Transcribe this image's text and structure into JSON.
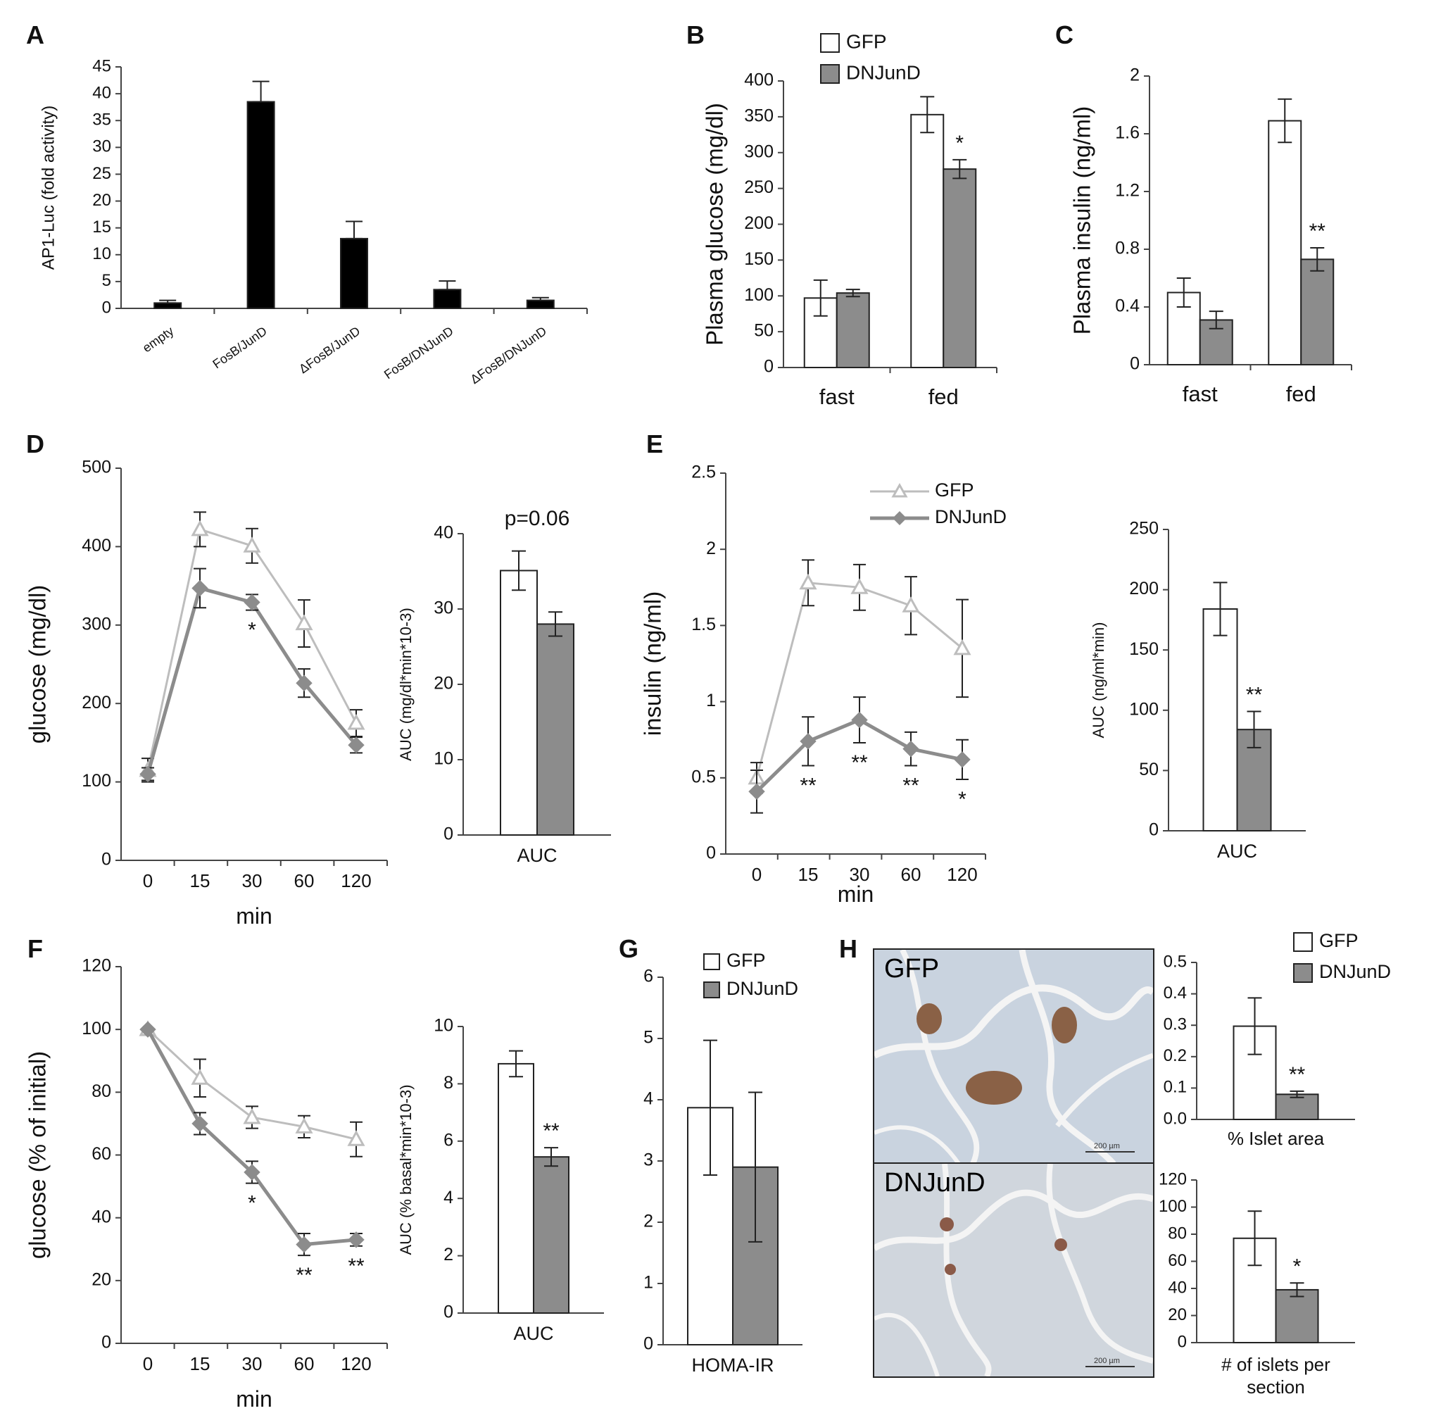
{
  "colors": {
    "gfp_bar": "#ffffff",
    "dnjund_bar": "#8c8c8c",
    "black_bar": "#000000",
    "gfp_line": "#bdbdbd",
    "dnjund_line": "#8c8c8c"
  },
  "chart_data": [
    {
      "panel": "A",
      "type": "bar",
      "ylabel": "AP1-Luc (fold activity)",
      "ylim": [
        0,
        45
      ],
      "yticks": [
        0,
        5,
        10,
        15,
        20,
        25,
        30,
        35,
        40,
        45
      ],
      "categories": [
        "empty",
        "FosB/JunD",
        "ΔFosB/JunD",
        "FosB/DNJunD",
        "ΔFosB/DNJunD"
      ],
      "series": [
        {
          "values": [
            1.0,
            38.5,
            13.0,
            3.5,
            1.5
          ],
          "errors": [
            0.5,
            3.8,
            3.2,
            1.6,
            0.5
          ],
          "color": "#000000"
        }
      ]
    },
    {
      "panel": "B",
      "type": "bar",
      "ylabel": "Plasma glucose (mg/dl)",
      "ylim": [
        0,
        400
      ],
      "yticks": [
        0,
        50,
        100,
        150,
        200,
        250,
        300,
        350,
        400
      ],
      "categories": [
        "fast",
        "fed"
      ],
      "series": [
        {
          "name": "GFP",
          "values": [
            97,
            353
          ],
          "errors": [
            25,
            25
          ]
        },
        {
          "name": "DNJunD",
          "values": [
            104,
            277
          ],
          "errors": [
            5,
            13
          ]
        }
      ],
      "annotations": [
        {
          "category": 1,
          "series": 1,
          "text": "*"
        }
      ]
    },
    {
      "panel": "C",
      "type": "bar",
      "ylabel": "Plasma insulin (ng/ml)",
      "ylim": [
        0,
        2
      ],
      "yticks": [
        "0",
        "0.4",
        "0.8",
        "1.2",
        "1.6",
        "2"
      ],
      "categories": [
        "fast",
        "fed"
      ],
      "series": [
        {
          "name": "GFP",
          "values": [
            0.5,
            1.69
          ],
          "errors": [
            0.1,
            0.15
          ]
        },
        {
          "name": "DNJunD",
          "values": [
            0.31,
            0.73
          ],
          "errors": [
            0.06,
            0.08
          ]
        }
      ],
      "annotations": [
        {
          "category": 1,
          "series": 1,
          "text": "**"
        }
      ]
    },
    {
      "panel": "D",
      "type": "line",
      "xlabel": "min",
      "ylabel": "glucose (mg/dl)",
      "ylim": [
        0,
        500
      ],
      "yticks": [
        0,
        100,
        200,
        300,
        400,
        500
      ],
      "x": [
        "0",
        "15",
        "30",
        "60",
        "120"
      ],
      "series": [
        {
          "name": "GFP",
          "values": [
            115,
            422,
            401,
            302,
            175
          ],
          "errors": [
            15,
            22,
            22,
            30,
            17
          ]
        },
        {
          "name": "DNJunD",
          "values": [
            110,
            347,
            329,
            226,
            147
          ],
          "errors": [
            8,
            25,
            10,
            18,
            10
          ]
        }
      ],
      "annotations": [
        {
          "x_index": 2,
          "text": "*"
        }
      ]
    },
    {
      "panel": "D",
      "type": "bar",
      "ylabel": "AUC (mg/dl*min*10-3)",
      "ylim": [
        0,
        40
      ],
      "yticks": [
        0,
        10,
        20,
        30,
        40
      ],
      "categories": [
        "AUC"
      ],
      "series": [
        {
          "name": "GFP",
          "values": [
            35.1
          ],
          "errors": [
            2.6
          ]
        },
        {
          "name": "DNJunD",
          "values": [
            28.0
          ],
          "errors": [
            1.6
          ]
        }
      ],
      "annotations": [
        {
          "text": "p=0.06"
        }
      ]
    },
    {
      "panel": "E",
      "type": "line",
      "xlabel": "min",
      "ylabel": "insulin (ng/ml)",
      "ylim": [
        0,
        2.5
      ],
      "yticks": [
        "0",
        "0.5",
        "1",
        "1.5",
        "2",
        "2.5"
      ],
      "x": [
        "0",
        "15",
        "30",
        "60",
        "120"
      ],
      "series": [
        {
          "name": "GFP",
          "values": [
            0.5,
            1.78,
            1.75,
            1.63,
            1.35
          ],
          "errors": [
            0.1,
            0.15,
            0.15,
            0.19,
            0.32
          ]
        },
        {
          "name": "DNJunD",
          "values": [
            0.41,
            0.74,
            0.88,
            0.69,
            0.62
          ],
          "errors": [
            0.14,
            0.16,
            0.15,
            0.11,
            0.13
          ]
        }
      ],
      "annotations": [
        {
          "x_index": 1,
          "text": "**"
        },
        {
          "x_index": 2,
          "text": "**"
        },
        {
          "x_index": 3,
          "text": "**"
        },
        {
          "x_index": 4,
          "text": "*"
        }
      ]
    },
    {
      "panel": "E",
      "type": "bar",
      "ylabel": "AUC (ng/ml*min)",
      "ylim": [
        0,
        250
      ],
      "yticks": [
        0,
        50,
        100,
        150,
        200,
        250
      ],
      "categories": [
        "AUC"
      ],
      "series": [
        {
          "name": "GFP",
          "values": [
            184
          ],
          "errors": [
            22
          ]
        },
        {
          "name": "DNJunD",
          "values": [
            84
          ],
          "errors": [
            15
          ]
        }
      ],
      "annotations": [
        {
          "series": 1,
          "text": "**"
        }
      ]
    },
    {
      "panel": "F",
      "type": "line",
      "xlabel": "min",
      "ylabel": "glucose (% of initial)",
      "ylim": [
        0,
        120
      ],
      "yticks": [
        0,
        20,
        40,
        60,
        80,
        100,
        120
      ],
      "x": [
        "0",
        "15",
        "30",
        "60",
        "120"
      ],
      "series": [
        {
          "name": "GFP",
          "values": [
            100,
            84.5,
            72,
            69,
            65
          ],
          "errors": [
            0,
            6,
            3.5,
            3.5,
            5.5
          ]
        },
        {
          "name": "DNJunD",
          "values": [
            100,
            70,
            54.5,
            31.5,
            33
          ],
          "errors": [
            0,
            3.5,
            3.5,
            3.5,
            2
          ]
        }
      ],
      "annotations": [
        {
          "x_index": 2,
          "text": "*"
        },
        {
          "x_index": 3,
          "text": "**"
        },
        {
          "x_index": 4,
          "text": "**"
        }
      ]
    },
    {
      "panel": "F",
      "type": "bar",
      "ylabel": "AUC (% basal*min*10-3)",
      "ylim": [
        0,
        10
      ],
      "yticks": [
        0,
        2,
        4,
        6,
        8,
        10
      ],
      "categories": [
        "AUC"
      ],
      "series": [
        {
          "name": "GFP",
          "values": [
            8.7
          ],
          "errors": [
            0.45
          ]
        },
        {
          "name": "DNJunD",
          "values": [
            5.45
          ],
          "errors": [
            0.32
          ]
        }
      ],
      "annotations": [
        {
          "series": 1,
          "text": "**"
        }
      ]
    },
    {
      "panel": "G",
      "type": "bar",
      "ylabel": "",
      "ylim": [
        0,
        6
      ],
      "yticks": [
        0,
        1,
        2,
        3,
        4,
        5,
        6
      ],
      "categories": [
        "HOMA-IR"
      ],
      "series": [
        {
          "name": "GFP",
          "values": [
            3.87
          ],
          "errors": [
            1.1
          ]
        },
        {
          "name": "DNJunD",
          "values": [
            2.9
          ],
          "errors": [
            1.22
          ]
        }
      ]
    },
    {
      "panel": "H",
      "type": "bar",
      "ylabel": "",
      "ylim": [
        0,
        0.5
      ],
      "yticks": [
        "0.0",
        "0.1",
        "0.2",
        "0.3",
        "0.4",
        "0.5"
      ],
      "categories": [
        "% Islet area"
      ],
      "series": [
        {
          "name": "GFP",
          "values": [
            0.297
          ],
          "errors": [
            0.09
          ]
        },
        {
          "name": "DNJunD",
          "values": [
            0.08
          ],
          "errors": [
            0.01
          ]
        }
      ],
      "annotations": [
        {
          "series": 1,
          "text": "**"
        }
      ]
    },
    {
      "panel": "H",
      "type": "bar",
      "ylabel": "",
      "ylim": [
        0,
        120
      ],
      "yticks": [
        0,
        20,
        40,
        60,
        80,
        100,
        120
      ],
      "categories": [
        "# of islets per section"
      ],
      "series": [
        {
          "name": "GFP",
          "values": [
            77
          ],
          "errors": [
            20
          ]
        },
        {
          "name": "DNJunD",
          "values": [
            39
          ],
          "errors": [
            5
          ]
        }
      ],
      "annotations": [
        {
          "series": 1,
          "text": "*"
        }
      ]
    }
  ],
  "panels": [
    "A",
    "B",
    "C",
    "D",
    "E",
    "F",
    "G",
    "H"
  ],
  "legends": {
    "B": [
      "GFP",
      "DNJunD"
    ],
    "E": [
      "GFP",
      "DNJunD"
    ],
    "G": [
      "GFP",
      "DNJunD"
    ],
    "H": [
      "GFP",
      "DNJunD"
    ]
  },
  "micrographs": [
    {
      "label": "GFP",
      "scale": "200 µm"
    },
    {
      "label": "DNJunD",
      "scale": "200 µm"
    }
  ]
}
